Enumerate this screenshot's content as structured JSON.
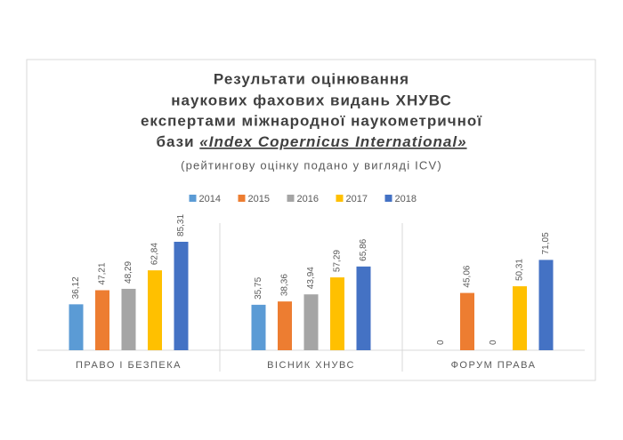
{
  "chart_data": {
    "type": "bar",
    "title": [
      "Результати оцінювання",
      "наукових фахових видань ХНУВС",
      "експертами міжнародної наукометричної",
      "бази"
    ],
    "title_emphasis": "«Index Copernicus International»",
    "subtitle": "(рейтингову оцінку подано у вигляді ICV)",
    "categories": [
      "ПРАВО І БЕЗПЕКА",
      "ВІСНИК ХНУВС",
      "ФОРУМ ПРАВА"
    ],
    "series": [
      {
        "name": "2014",
        "color": "#5b9bd5",
        "values": [
          36.12,
          35.75,
          0
        ],
        "value_labels": [
          "36,12",
          "35,75",
          "0"
        ]
      },
      {
        "name": "2015",
        "color": "#ed7d31",
        "values": [
          47.21,
          38.36,
          45.06
        ],
        "value_labels": [
          "47,21",
          "38,36",
          "45,06"
        ]
      },
      {
        "name": "2016",
        "color": "#a5a5a5",
        "values": [
          48.29,
          43.94,
          0
        ],
        "value_labels": [
          "48,29",
          "43,94",
          "0"
        ]
      },
      {
        "name": "2017",
        "color": "#ffc000",
        "values": [
          62.84,
          57.29,
          50.31
        ],
        "value_labels": [
          "62,84",
          "57,29",
          "50,31"
        ]
      },
      {
        "name": "2018",
        "color": "#4472c4",
        "values": [
          85.31,
          65.86,
          71.05
        ],
        "value_labels": [
          "85,31",
          "65,86",
          "71,05"
        ]
      }
    ],
    "ylim": [
      0,
      100
    ],
    "legend": "top"
  }
}
